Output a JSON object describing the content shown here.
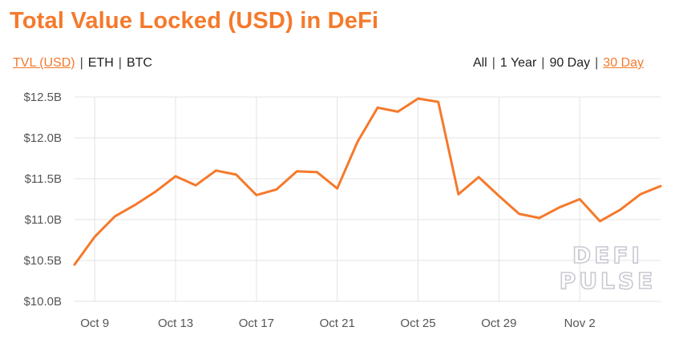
{
  "header": {
    "title": "Total Value Locked (USD) in DeFi"
  },
  "unit_toggles": [
    {
      "label": "TVL (USD)",
      "active": true
    },
    {
      "label": "ETH",
      "active": false
    },
    {
      "label": "BTC",
      "active": false
    }
  ],
  "range_toggles": [
    {
      "label": "All",
      "active": false
    },
    {
      "label": "1 Year",
      "active": false
    },
    {
      "label": "90 Day",
      "active": false
    },
    {
      "label": "30 Day",
      "active": true
    }
  ],
  "watermark": [
    "DEFI",
    "PULSE"
  ],
  "colors": {
    "accent": "#f5792b",
    "line": "#f5792b",
    "grid": "#e3e3e3"
  },
  "chart_data": {
    "type": "line",
    "title": "Total Value Locked (USD) in DeFi",
    "xlabel": "",
    "ylabel": "",
    "ylim": [
      10.0,
      12.5
    ],
    "y_ticks": [
      10.0,
      10.5,
      11.0,
      11.5,
      12.0,
      12.5
    ],
    "y_tick_labels": [
      "$10.0B",
      "$10.5B",
      "$11.0B",
      "$11.5B",
      "$12.0B",
      "$12.5B"
    ],
    "x_tick_labels": [
      "Oct 9",
      "Oct 13",
      "Oct 17",
      "Oct 21",
      "Oct 25",
      "Oct 29",
      "Nov 2"
    ],
    "grid": true,
    "series": [
      {
        "x": [
          "Oct 8",
          "Oct 9",
          "Oct 10",
          "Oct 11",
          "Oct 12",
          "Oct 13",
          "Oct 14",
          "Oct 15",
          "Oct 16",
          "Oct 17",
          "Oct 18",
          "Oct 19",
          "Oct 20",
          "Oct 21",
          "Oct 22",
          "Oct 23",
          "Oct 24",
          "Oct 25",
          "Oct 26",
          "Oct 27",
          "Oct 28",
          "Oct 29",
          "Oct 30",
          "Oct 31",
          "Nov 1",
          "Nov 2",
          "Nov 3",
          "Nov 4",
          "Nov 5",
          "Nov 6"
        ],
        "values": [
          10.45,
          10.79,
          11.04,
          11.18,
          11.34,
          11.53,
          11.42,
          11.6,
          11.55,
          11.3,
          11.37,
          11.59,
          11.58,
          11.38,
          11.95,
          12.37,
          12.32,
          12.48,
          12.44,
          11.31,
          11.52,
          11.29,
          11.07,
          11.02,
          11.15,
          11.25,
          10.98,
          11.12,
          11.31,
          11.41
        ]
      }
    ]
  }
}
